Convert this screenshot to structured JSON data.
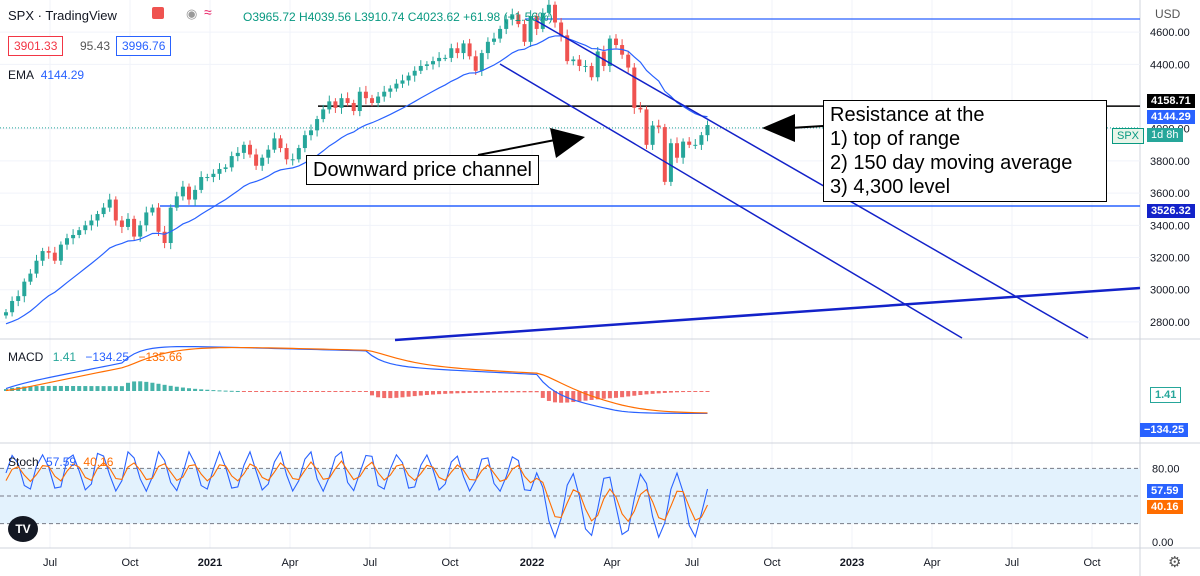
{
  "header": {
    "symbol": "SPX",
    "source": "TradingView",
    "ohlc": "O3965.72 H4039.56 L3910.74 C4023.62 +61.98 (+1.56%)",
    "bid": "3901.33",
    "spread": "95.43",
    "ask": "3996.76",
    "ema_label": "EMA",
    "ema_value": "4144.29",
    "currency": "USD"
  },
  "colors": {
    "up": "#26a69a",
    "down": "#ef5350",
    "ema": "#2962ff",
    "macd": "#2962ff",
    "signal": "#ff6d00",
    "channel": "#1322c9",
    "hline": "#2962ff",
    "stoch_band": "#e3f2fd"
  },
  "price_axis": {
    "ticks": [
      "4600.00",
      "4400.00",
      "4000.00",
      "3800.00",
      "3600.00",
      "3400.00",
      "3200.00",
      "3000.00",
      "2800.00"
    ],
    "badges": [
      {
        "label": "4158.71",
        "kind": "black"
      },
      {
        "label": "4144.29",
        "kind": "blue"
      },
      {
        "label": "3526.32",
        "kind": "darkblue"
      }
    ],
    "spx_tag": "SPX",
    "time_tag": "1d 8h"
  },
  "time_axis": [
    "Jul",
    "Oct",
    "2021",
    "Apr",
    "Jul",
    "Oct",
    "2022",
    "Apr",
    "Jul",
    "Oct",
    "2023",
    "Apr",
    "Jul",
    "Oct"
  ],
  "annotations": {
    "channel_label": "Downward price channel",
    "resistance": [
      "Resistance at the",
      "1) top of range",
      "2) 150 day moving average",
      "3) 4,300 level"
    ]
  },
  "macd": {
    "label": "MACD",
    "v1": "1.41",
    "v2": "−134.25",
    "v3": "−135.66",
    "badge1": "1.41",
    "badge2": "−134.25"
  },
  "stoch": {
    "label": "Stoch",
    "k": "57.59",
    "d": "40.16",
    "ticks": [
      "80.00",
      "0.00"
    ],
    "badge_k": "57.59",
    "badge_d": "40.16"
  },
  "chart_data": {
    "type": "line",
    "title": "SPX",
    "timeframe": "weekly",
    "price_ylim": [
      2700,
      4750
    ],
    "close_series": {
      "name": "SPX",
      "x_start": "2020-05",
      "values": [
        2860,
        2930,
        2960,
        3050,
        3100,
        3180,
        3240,
        3230,
        3180,
        3280,
        3320,
        3340,
        3370,
        3400,
        3430,
        3470,
        3510,
        3560,
        3430,
        3390,
        3440,
        3330,
        3400,
        3480,
        3510,
        3360,
        3290,
        3510,
        3580,
        3640,
        3560,
        3620,
        3700,
        3700,
        3720,
        3750,
        3760,
        3830,
        3850,
        3900,
        3840,
        3770,
        3820,
        3870,
        3940,
        3880,
        3810,
        3810,
        3880,
        3960,
        3990,
        4060,
        4120,
        4170,
        4130,
        4190,
        4160,
        4110,
        4230,
        4190,
        4160,
        4200,
        4230,
        4250,
        4280,
        4300,
        4330,
        4360,
        4390,
        4400,
        4420,
        4440,
        4440,
        4500,
        4470,
        4530,
        4450,
        4360,
        4470,
        4540,
        4560,
        4620,
        4680,
        4710,
        4650,
        4540,
        4700,
        4620,
        4720,
        4770,
        4660,
        4580,
        4420,
        4430,
        4390,
        4390,
        4320,
        4480,
        4390,
        4560,
        4520,
        4460,
        4380,
        4130,
        4120,
        3900,
        4020,
        4010,
        3670,
        3910,
        3820,
        3920,
        3900,
        3900,
        3960,
        4023
      ]
    },
    "ema_value": 4144.29,
    "horizontal_levels": [
      4158.71,
      3526.32,
      4800
    ],
    "channel_lines": [
      {
        "name": "upper",
        "from": [
          "2021-12-27",
          4800
        ],
        "to": [
          "2023-07",
          2650
        ]
      },
      {
        "name": "lower",
        "from": [
          "2021-11-22",
          4500
        ],
        "to": [
          "2023-04",
          2650
        ]
      }
    ],
    "macd": {
      "macd": -134.25,
      "signal": -135.66,
      "hist": 1.41
    },
    "stoch": {
      "k": 57.59,
      "d": 40.16,
      "upper": 80,
      "lower": 20
    }
  }
}
